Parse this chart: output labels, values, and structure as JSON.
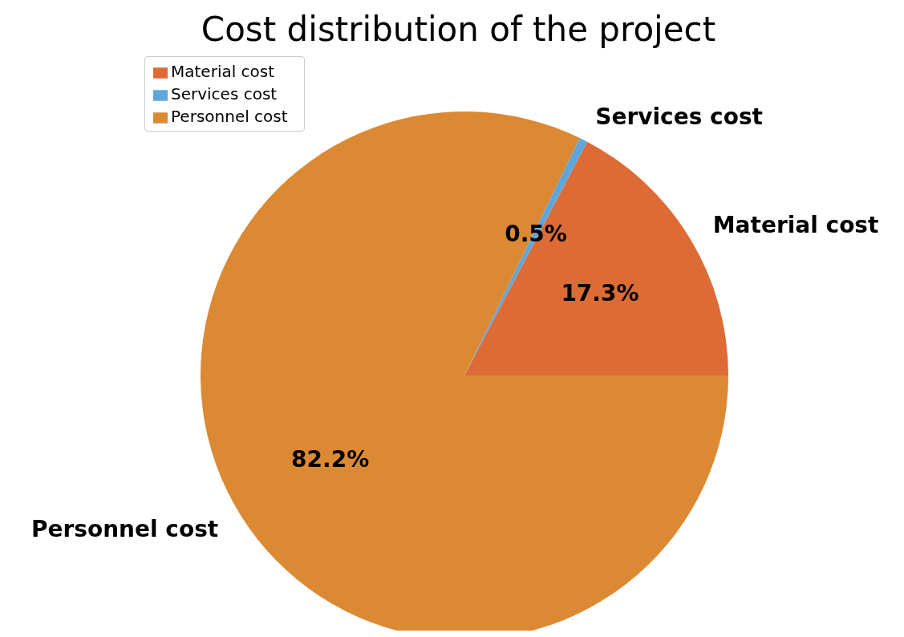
{
  "chart_data": {
    "type": "pie",
    "title": "Cost distribution of the project",
    "categories": [
      "Material cost",
      "Services cost",
      "Personnel cost"
    ],
    "values": [
      17.3,
      0.5,
      82.2
    ],
    "value_labels": [
      "17.3%",
      "0.5%",
      "82.2%"
    ],
    "colors": [
      "#dd6b35",
      "#5fa6db",
      "#dc8933"
    ],
    "legend": "top left"
  }
}
